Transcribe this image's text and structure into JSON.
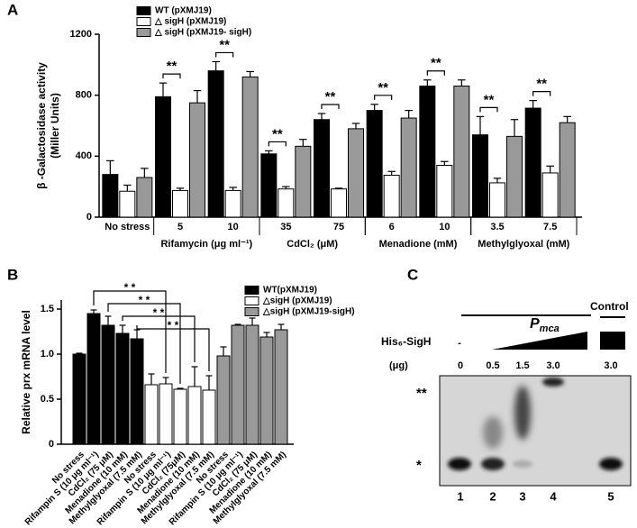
{
  "chart_data": [
    {
      "type": "bar",
      "panel_label": "A",
      "y_label": [
        "β -Galactosidase activity",
        "(Miller Units)"
      ],
      "categories": [
        "No stress",
        "5",
        "10",
        "35",
        "75",
        "6",
        "10",
        "3.5",
        "7.5"
      ],
      "groups": [
        {
          "label": "Rifamycin (μg ml⁻¹)",
          "span": [
            1,
            2
          ]
        },
        {
          "label": "CdCl₂ (μM)",
          "span": [
            3,
            4
          ]
        },
        {
          "label": "Menadione (mM)",
          "span": [
            5,
            6
          ]
        },
        {
          "label": "Methylglyoxal  (mM)",
          "span": [
            7,
            8
          ]
        }
      ],
      "series": [
        {
          "name": "WT (pXMJ19)",
          "color": "#000000",
          "values": [
            280,
            790,
            960,
            415,
            640,
            700,
            860,
            540,
            715
          ],
          "errors": [
            90,
            90,
            60,
            20,
            40,
            40,
            40,
            120,
            50
          ]
        },
        {
          "name": "△ sigH (pXMJ19)",
          "color": "#ffffff",
          "values": [
            170,
            175,
            175,
            185,
            185,
            275,
            340,
            225,
            290
          ],
          "errors": [
            40,
            15,
            20,
            15,
            5,
            25,
            25,
            30,
            45
          ]
        },
        {
          "name": "△ sigH (pXMJ19- sigH)",
          "color": "#999999",
          "values": [
            260,
            750,
            920,
            465,
            580,
            650,
            860,
            530,
            620
          ],
          "errors": [
            60,
            80,
            35,
            45,
            35,
            50,
            40,
            110,
            40
          ]
        }
      ],
      "significance": [
        null,
        "**",
        "**",
        "**",
        "**",
        "**",
        "**",
        "**",
        "**"
      ],
      "ylim": [
        0,
        1200
      ],
      "yticks": [
        0,
        400,
        800,
        1200
      ]
    },
    {
      "type": "bar",
      "panel_label": "B",
      "y_label": [
        "Relative prx mRNA level"
      ],
      "categories": [
        "No stress",
        "Rifampin S (10 μg ml⁻¹)",
        "CdCl₂ (75 μM)",
        "Menadione (10 mM)",
        "Methylglyoxal (7.5 mM)",
        "No stress",
        "Rifampin S (10 μg ml⁻¹)",
        "CdCl₂ (75μM)",
        "Menadione (10 mM)",
        "Methylglyoxal (7.5 mM)",
        "No stress",
        "Rifampin S (10 μg ml⁻¹)",
        "CdCl₂ (75 μM)",
        "Menadione (10 mM)",
        "Methylglyoxal (7.5 mM)"
      ],
      "series": [
        {
          "name": "WT(pXMJ19)",
          "color": "#000000",
          "values": [
            1.0,
            1.45,
            1.32,
            1.23,
            1.17,
            null,
            null,
            null,
            null,
            null,
            null,
            null,
            null,
            null,
            null
          ],
          "errors": [
            0.01,
            0.04,
            0.1,
            0.09,
            0.1,
            null,
            null,
            null,
            null,
            null,
            null,
            null,
            null,
            null,
            null
          ]
        },
        {
          "name": "△sigH (pXMJ19)",
          "color": "#ffffff",
          "values": [
            null,
            null,
            null,
            null,
            null,
            0.66,
            0.67,
            0.61,
            0.64,
            0.6,
            null,
            null,
            null,
            null,
            null
          ],
          "errors": [
            null,
            null,
            null,
            null,
            null,
            0.12,
            0.07,
            0.01,
            0.22,
            0.16,
            null,
            null,
            null,
            null,
            null
          ]
        },
        {
          "name": "△sigH (pXMJ19-sigH)",
          "color": "#999999",
          "values": [
            null,
            null,
            null,
            null,
            null,
            null,
            null,
            null,
            null,
            null,
            0.98,
            1.32,
            1.32,
            1.19,
            1.27
          ],
          "errors": [
            null,
            null,
            null,
            null,
            null,
            null,
            null,
            null,
            null,
            null,
            0.1,
            0.01,
            0.08,
            0.05,
            0.06
          ]
        }
      ],
      "comparisons": [
        {
          "from": 1,
          "to": 6,
          "label": "* *"
        },
        {
          "from": 2,
          "to": 7,
          "label": "* *"
        },
        {
          "from": 3,
          "to": 8,
          "label": "* *"
        },
        {
          "from": 4,
          "to": 9,
          "label": "* *"
        }
      ],
      "ylim": [
        0,
        1.6
      ],
      "yticks": [
        0,
        0.5,
        {
          "value": 1,
          "label": "1.0"
        },
        1.5
      ]
    }
  ],
  "gel": {
    "panel_label": "C",
    "promoter": "P",
    "promoter_sub": "mca",
    "control": "Control",
    "protein": "His₆-SigH",
    "unit": "(μg)",
    "lane_minus": "-",
    "amounts": [
      "0",
      "0.5",
      "1.5",
      "3.0",
      "3.0"
    ],
    "shifted_marker": "**",
    "free_marker": "*",
    "lanes": [
      "1",
      "2",
      "3",
      "4",
      "5"
    ]
  }
}
